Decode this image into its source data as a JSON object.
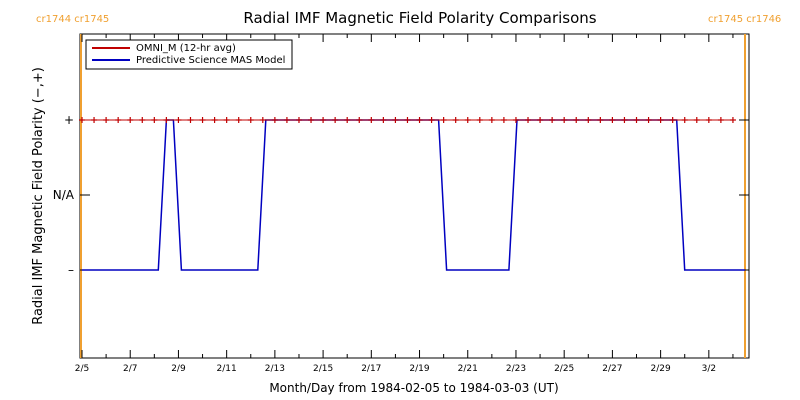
{
  "chart_data": {
    "type": "line",
    "title": "Radial IMF Magnetic Field Polarity Comparisons",
    "xlabel": "Month/Day from 1984-02-05 to 1984-03-03 (UT)",
    "ylabel": "Radial IMF Magnetic Field Polarity (−,+)",
    "x_start": "1984-02-05",
    "x_end": "1984-03-03",
    "x_ticks": [
      "2/5",
      "2/7",
      "2/9",
      "2/11",
      "2/13",
      "2/15",
      "2/17",
      "2/19",
      "2/21",
      "2/23",
      "2/25",
      "2/27",
      "2/29",
      "3/2"
    ],
    "y_ticks": [
      "+",
      "N/A",
      "–"
    ],
    "y_categories": {
      "minus": -1,
      "na": 0,
      "plus": 1
    },
    "carrington_labels": [
      {
        "text": "cr1744 cr1745",
        "date": "1984-02-05T00:00"
      },
      {
        "text": "cr1745 cr1746",
        "date": "1984-03-03T12:00"
      }
    ],
    "legend": {
      "position": "top-left",
      "entries": [
        {
          "name": "OMNI_M (12-hr avg)",
          "color": "#c00000"
        },
        {
          "name": "Predictive Science MAS Model",
          "color": "#0000c0"
        }
      ]
    },
    "series": [
      {
        "name": "OMNI_M (12-hr avg)",
        "color": "#c00000",
        "marker": "plus",
        "x": [
          "1984-02-05T00:00",
          "1984-02-05T12:00",
          "1984-02-06T00:00",
          "1984-02-06T12:00",
          "1984-02-07T00:00",
          "1984-02-07T12:00",
          "1984-02-08T00:00",
          "1984-02-08T12:00",
          "1984-02-09T00:00",
          "1984-02-09T12:00",
          "1984-02-10T00:00",
          "1984-02-10T12:00",
          "1984-02-11T00:00",
          "1984-02-11T12:00",
          "1984-02-12T00:00",
          "1984-02-12T12:00",
          "1984-02-13T00:00",
          "1984-02-13T12:00",
          "1984-02-14T00:00",
          "1984-02-14T12:00",
          "1984-02-15T00:00",
          "1984-02-15T12:00",
          "1984-02-16T00:00",
          "1984-02-16T12:00",
          "1984-02-17T00:00",
          "1984-02-17T12:00",
          "1984-02-18T00:00",
          "1984-02-18T12:00",
          "1984-02-19T00:00",
          "1984-02-19T12:00",
          "1984-02-20T00:00",
          "1984-02-20T12:00",
          "1984-02-21T00:00",
          "1984-02-21T12:00",
          "1984-02-22T00:00",
          "1984-02-22T12:00",
          "1984-02-23T00:00",
          "1984-02-23T12:00",
          "1984-02-24T00:00",
          "1984-02-24T12:00",
          "1984-02-25T00:00",
          "1984-02-25T12:00",
          "1984-02-26T00:00",
          "1984-02-26T12:00",
          "1984-02-27T00:00",
          "1984-02-27T12:00",
          "1984-02-28T00:00",
          "1984-02-28T12:00",
          "1984-02-29T00:00",
          "1984-02-29T12:00",
          "1984-03-01T00:00",
          "1984-03-01T12:00",
          "1984-03-02T00:00",
          "1984-03-02T12:00",
          "1984-03-03T00:00"
        ],
        "y": [
          1,
          1,
          1,
          1,
          1,
          1,
          1,
          1,
          1,
          1,
          1,
          1,
          1,
          1,
          1,
          1,
          1,
          1,
          1,
          1,
          1,
          1,
          1,
          1,
          1,
          1,
          1,
          1,
          1,
          1,
          1,
          1,
          1,
          1,
          1,
          1,
          1,
          1,
          1,
          1,
          1,
          1,
          1,
          1,
          1,
          1,
          1,
          1,
          1,
          1,
          1,
          1,
          1,
          1,
          1
        ]
      },
      {
        "name": "Predictive Science MAS Model",
        "color": "#0000c0",
        "marker": "none",
        "x": [
          "1984-02-05T00:00",
          "1984-02-08T04:00",
          "1984-02-08T12:00",
          "1984-02-08T19:00",
          "1984-02-09T03:00",
          "1984-02-12T07:00",
          "1984-02-12T15:00",
          "1984-02-19T19:00",
          "1984-02-20T03:00",
          "1984-02-22T17:00",
          "1984-02-23T01:00",
          "1984-02-29T16:00",
          "1984-03-01T00:00",
          "1984-03-03T12:00"
        ],
        "y": [
          -1,
          -1,
          1,
          1,
          -1,
          -1,
          1,
          1,
          -1,
          -1,
          1,
          1,
          -1,
          -1
        ]
      }
    ]
  }
}
